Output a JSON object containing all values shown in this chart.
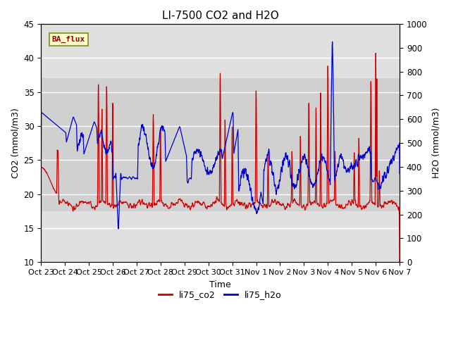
{
  "title": "LI-7500 CO2 and H2O",
  "xlabel": "Time",
  "ylabel_left": "CO2 (mmol/m3)",
  "ylabel_right": "H2O (mmol/m3)",
  "ylim_left": [
    10,
    45
  ],
  "ylim_right": [
    0,
    1000
  ],
  "yticks_left": [
    10,
    15,
    20,
    25,
    30,
    35,
    40,
    45
  ],
  "yticks_right": [
    0,
    100,
    200,
    300,
    400,
    500,
    600,
    700,
    800,
    900,
    1000
  ],
  "xtick_labels": [
    "Oct 23",
    "Oct 24",
    "Oct 25",
    "Oct 26",
    "Oct 27",
    "Oct 28",
    "Oct 29",
    "Oct 30",
    "Oct 31",
    "Nov 1",
    "Nov 2",
    "Nov 3",
    "Nov 4",
    "Nov 5",
    "Nov 6",
    "Nov 7"
  ],
  "co2_color": "#cc0000",
  "h2o_color": "#0000cc",
  "background_color": "#ffffff",
  "plot_bg_color": "#e0e0e0",
  "shaded_band_low": 17.5,
  "shaded_band_high": 37.0,
  "shaded_band_color": "#d0d0d0",
  "annotation_text": "BA_flux",
  "annotation_bg": "#ffffcc",
  "annotation_border": "#999933",
  "legend_co2": "li75_co2",
  "legend_h2o": "li75_h2o",
  "title_fontsize": 11,
  "axis_fontsize": 9,
  "tick_fontsize": 8.5,
  "legend_fontsize": 9
}
